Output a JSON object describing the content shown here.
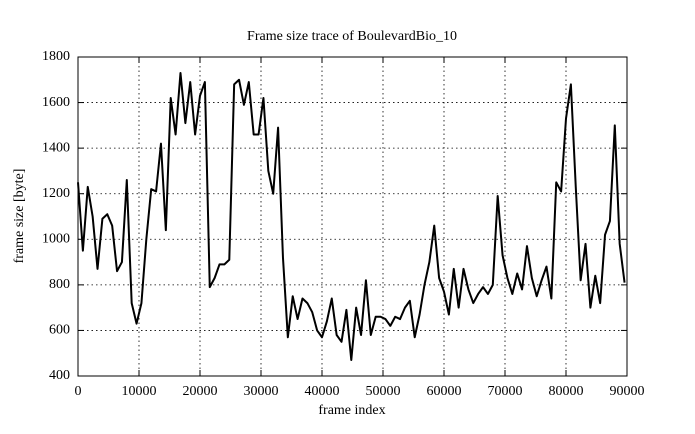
{
  "chart_data": {
    "type": "line",
    "title": "Frame size trace of BoulevardBio_10",
    "xlabel": "frame index",
    "ylabel": "frame size [byte]",
    "x": [
      0,
      800,
      1600,
      2400,
      3200,
      4000,
      4800,
      5600,
      6400,
      7200,
      8000,
      8800,
      9600,
      10400,
      11200,
      12000,
      12800,
      13600,
      14400,
      15200,
      16000,
      16800,
      17600,
      18400,
      19200,
      20000,
      20800,
      21600,
      22400,
      23200,
      24000,
      24800,
      25600,
      26400,
      27200,
      28000,
      28800,
      29600,
      30400,
      31200,
      32000,
      32800,
      33600,
      34400,
      35200,
      36000,
      36800,
      37600,
      38400,
      39200,
      40000,
      40800,
      41600,
      42400,
      43200,
      44000,
      44800,
      45600,
      46400,
      47200,
      48000,
      48800,
      49600,
      50400,
      51200,
      52000,
      52800,
      53600,
      54400,
      55200,
      56000,
      56800,
      57600,
      58400,
      59200,
      60000,
      60800,
      61600,
      62400,
      63200,
      64000,
      64800,
      65600,
      66400,
      67200,
      68000,
      68800,
      69600,
      70400,
      71200,
      72000,
      72800,
      73600,
      74400,
      75200,
      76000,
      76800,
      77600,
      78400,
      79200,
      80000,
      80800,
      81600,
      82400,
      83200,
      84000,
      84800,
      85600,
      86400,
      87200,
      88000,
      88800,
      89600
    ],
    "series": [
      {
        "color": "#000000",
        "values": [
          1250,
          950,
          1230,
          1100,
          870,
          1090,
          1110,
          1060,
          860,
          900,
          1260,
          720,
          630,
          720,
          1000,
          1220,
          1210,
          1420,
          1040,
          1620,
          1460,
          1730,
          1510,
          1690,
          1460,
          1630,
          1690,
          790,
          830,
          890,
          890,
          910,
          1680,
          1700,
          1590,
          1690,
          1460,
          1460,
          1620,
          1300,
          1200,
          1490,
          920,
          570,
          750,
          650,
          740,
          720,
          680,
          600,
          570,
          640,
          740,
          580,
          550,
          690,
          470,
          700,
          580,
          820,
          580,
          660,
          660,
          650,
          620,
          660,
          650,
          700,
          730,
          570,
          670,
          800,
          900,
          1060,
          830,
          770,
          670,
          870,
          700,
          870,
          780,
          720,
          760,
          790,
          760,
          800,
          1190,
          930,
          830,
          760,
          850,
          780,
          970,
          830,
          750,
          820,
          880,
          740,
          1250,
          1210,
          1530,
          1680,
          1230,
          820,
          980,
          700,
          840,
          720,
          1020,
          1080,
          1500,
          980,
          810
        ]
      }
    ],
    "xlim": [
      0,
      90000
    ],
    "xticks": [
      0,
      10000,
      20000,
      30000,
      40000,
      50000,
      60000,
      70000,
      80000,
      90000
    ],
    "ylim": [
      400,
      1800
    ],
    "yticks": [
      400,
      600,
      800,
      1000,
      1200,
      1400,
      1600,
      1800
    ],
    "grid": true
  }
}
